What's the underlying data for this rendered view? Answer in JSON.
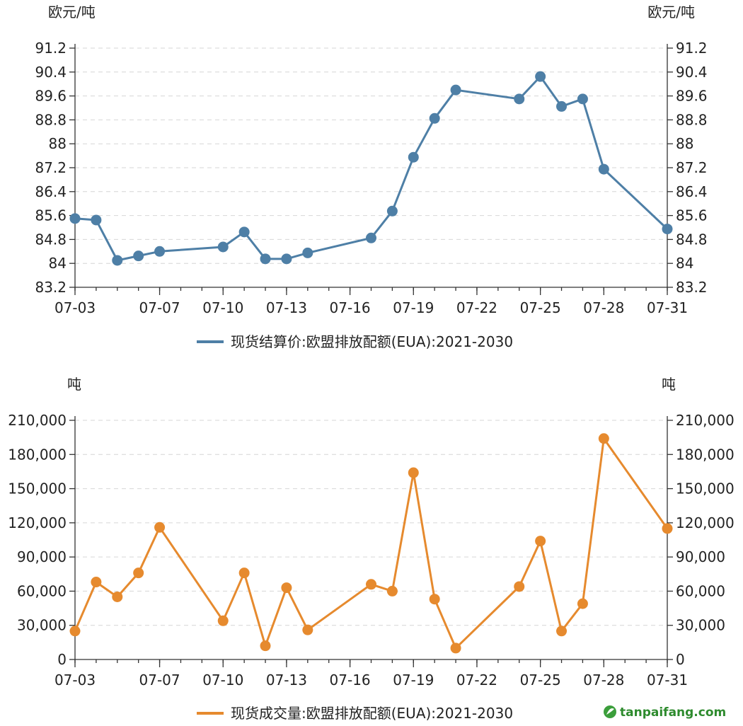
{
  "chart_data": [
    {
      "type": "line",
      "unit_left": "欧元/吨",
      "unit_right": "欧元/吨",
      "x_ticks": [
        "07-03",
        "07-07",
        "07-10",
        "07-13",
        "07-16",
        "07-19",
        "07-22",
        "07-25",
        "07-28",
        "07-31"
      ],
      "y_ticks": [
        "83.2",
        "84",
        "84.8",
        "85.6",
        "86.4",
        "87.2",
        "88",
        "88.8",
        "89.6",
        "90.4",
        "91.2"
      ],
      "ylim": [
        83.2,
        91.2
      ],
      "grid": true,
      "legend_position": "bottom",
      "color": "#4e7fa6",
      "series": [
        {
          "name": "现货结算价:欧盟排放配额(EUA):2021-2030",
          "x": [
            3,
            4,
            5,
            6,
            7,
            10,
            11,
            12,
            13,
            14,
            17,
            18,
            19,
            20,
            21,
            24,
            25,
            26,
            27,
            28,
            31
          ],
          "values": [
            85.5,
            85.45,
            84.1,
            84.25,
            84.4,
            84.55,
            85.05,
            84.15,
            84.15,
            84.35,
            84.85,
            85.75,
            87.55,
            88.85,
            89.8,
            89.5,
            90.25,
            89.25,
            89.5,
            87.15,
            85.15
          ]
        }
      ]
    },
    {
      "type": "line",
      "unit_left": "吨",
      "unit_right": "吨",
      "x_ticks": [
        "07-03",
        "07-07",
        "07-10",
        "07-13",
        "07-16",
        "07-19",
        "07-22",
        "07-25",
        "07-28",
        "07-31"
      ],
      "y_ticks": [
        "0",
        "30,000",
        "60,000",
        "90,000",
        "120,000",
        "150,000",
        "180,000",
        "210,000"
      ],
      "ylim": [
        0,
        210000
      ],
      "grid": true,
      "legend_position": "bottom",
      "color": "#e68a2e",
      "series": [
        {
          "name": "现货成交量:欧盟排放配额(EUA):2021-2030",
          "x": [
            3,
            4,
            5,
            6,
            7,
            10,
            11,
            12,
            13,
            14,
            17,
            18,
            19,
            20,
            21,
            24,
            25,
            26,
            27,
            28,
            31
          ],
          "values": [
            25000,
            68000,
            55000,
            76000,
            116000,
            34000,
            76000,
            12000,
            63000,
            26000,
            66000,
            60000,
            164000,
            53000,
            10000,
            64000,
            104000,
            25000,
            49000,
            194000,
            115000
          ]
        }
      ]
    }
  ],
  "watermark": "tanpaifang.com"
}
